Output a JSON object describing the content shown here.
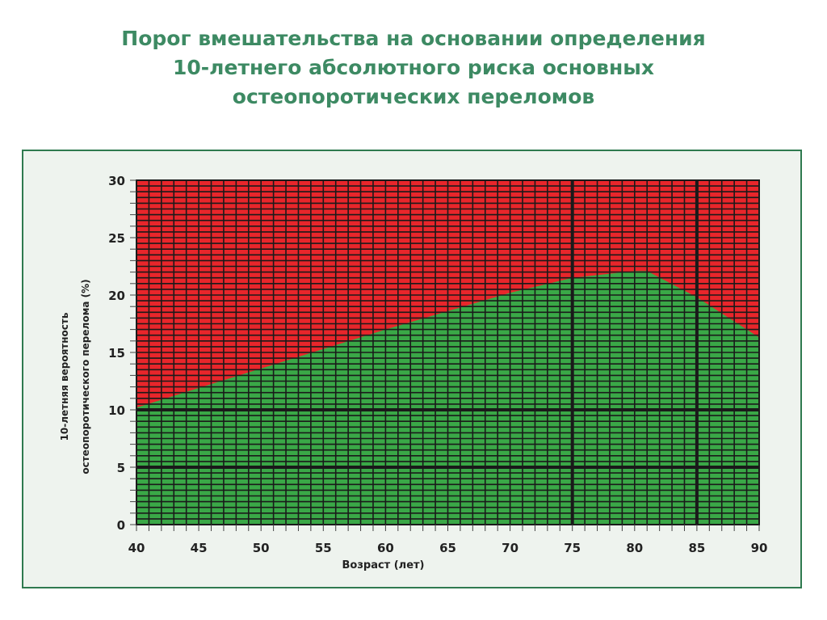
{
  "slide": {
    "title_lines": [
      "Порог вмешательства на основании определения",
      "10-летнего абсолютного риска основных",
      "остеопоротических переломов"
    ]
  },
  "chart_data": {
    "type": "area",
    "xlabel": "Возраст (лет)",
    "ylabel_lines": [
      "10-летняя вероятность",
      "остеопоротического перелома (%)"
    ],
    "xlim": [
      40,
      90
    ],
    "ylim": [
      0,
      30
    ],
    "x_ticks": [
      40,
      45,
      50,
      55,
      60,
      65,
      70,
      75,
      80,
      85,
      90
    ],
    "y_ticks": [
      0,
      5,
      10,
      15,
      20,
      25,
      30
    ],
    "threshold": {
      "x": [
        40,
        45,
        50,
        55,
        60,
        65,
        70,
        75,
        80,
        81,
        85,
        90
      ],
      "y": [
        10.2,
        11.9,
        13.6,
        15.3,
        17.0,
        18.6,
        20.2,
        21.5,
        22.1,
        22.1,
        19.8,
        16.3
      ]
    },
    "highlight_x": [
      75,
      85
    ],
    "highlight_y": [
      5,
      10
    ],
    "colors": {
      "above": "#e8262b",
      "below": "#3aa847",
      "grid": "#1a1a1a",
      "frame_border": "#2f7a4f",
      "title": "#3d8a63"
    }
  }
}
